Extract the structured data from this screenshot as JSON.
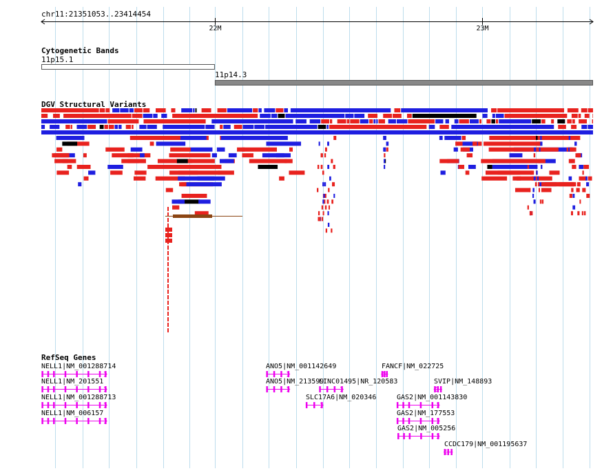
{
  "browser": {
    "location": "chr11:21351053..23414454",
    "ruler_ticks": [
      {
        "label": "22M",
        "pos_mb": 22.0
      },
      {
        "label": "23M",
        "pos_mb": 23.0
      }
    ],
    "view_start": 21351053,
    "view_end": 23414454
  },
  "tracks": {
    "cytobands": {
      "title": "Cytogenetic Bands",
      "bands": [
        {
          "name": "11p15.1",
          "start_mb": 21.351053,
          "end_mb": 22.0,
          "stain": "gneg",
          "color": "#ffffff"
        },
        {
          "name": "11p14.3",
          "start_mb": 22.0,
          "end_mb": 23.414454,
          "stain": "gpos",
          "color": "#888888"
        }
      ]
    },
    "dgv": {
      "title": "DGV Structural Variants",
      "colors": {
        "loss": "#e8221e",
        "gain": "#1e1ee0",
        "both": "#000000",
        "inversion": "#8b4513"
      }
    },
    "refseq": {
      "title": "RefSeq Genes",
      "color": "#ee00ee",
      "genes": [
        {
          "label": "NELL1|NM_001288714",
          "start_mb": 21.352,
          "end_mb": 21.596,
          "strand": "+",
          "row": 0
        },
        {
          "label": "NELL1|NM_201551",
          "start_mb": 21.352,
          "end_mb": 21.596,
          "strand": "+",
          "row": 1
        },
        {
          "label": "NELL1|NM_001288713",
          "start_mb": 21.352,
          "end_mb": 21.596,
          "strand": "+",
          "row": 2
        },
        {
          "label": "NELL1|NM_006157",
          "start_mb": 21.352,
          "end_mb": 21.596,
          "strand": "+",
          "row": 3
        },
        {
          "label": "ANO5|NM_001142649",
          "start_mb": 22.192,
          "end_mb": 22.28,
          "strand": "+",
          "row": 0
        },
        {
          "label": "ANO5|NM_213599",
          "start_mb": 22.192,
          "end_mb": 22.28,
          "strand": "+",
          "row": 1
        },
        {
          "label": "FANCF|NM_022725",
          "start_mb": 22.623,
          "end_mb": 22.648,
          "strand": "-",
          "row": 0
        },
        {
          "label": "LINC01495|NR_120583",
          "start_mb": 22.39,
          "end_mb": 22.48,
          "strand": "+",
          "row": 1
        },
        {
          "label": "SVIP|NM_148893",
          "start_mb": 22.82,
          "end_mb": 22.85,
          "strand": "-",
          "row": 1
        },
        {
          "label": "SLC17A6|NM_020346",
          "start_mb": 22.34,
          "end_mb": 22.405,
          "strand": "+",
          "row": 2
        },
        {
          "label": "GAS2|NM_001143830",
          "start_mb": 22.68,
          "end_mb": 22.84,
          "strand": "+",
          "row": 2
        },
        {
          "label": "GAS2|NM_177553",
          "start_mb": 22.68,
          "end_mb": 22.84,
          "strand": "+",
          "row": 3
        },
        {
          "label": "GAS2|NM_005256",
          "start_mb": 22.683,
          "end_mb": 22.84,
          "strand": "+",
          "row": 4
        },
        {
          "label": "CCDC179|NM_001195637",
          "start_mb": 22.857,
          "end_mb": 22.89,
          "strand": "-",
          "row": 5
        }
      ]
    }
  }
}
